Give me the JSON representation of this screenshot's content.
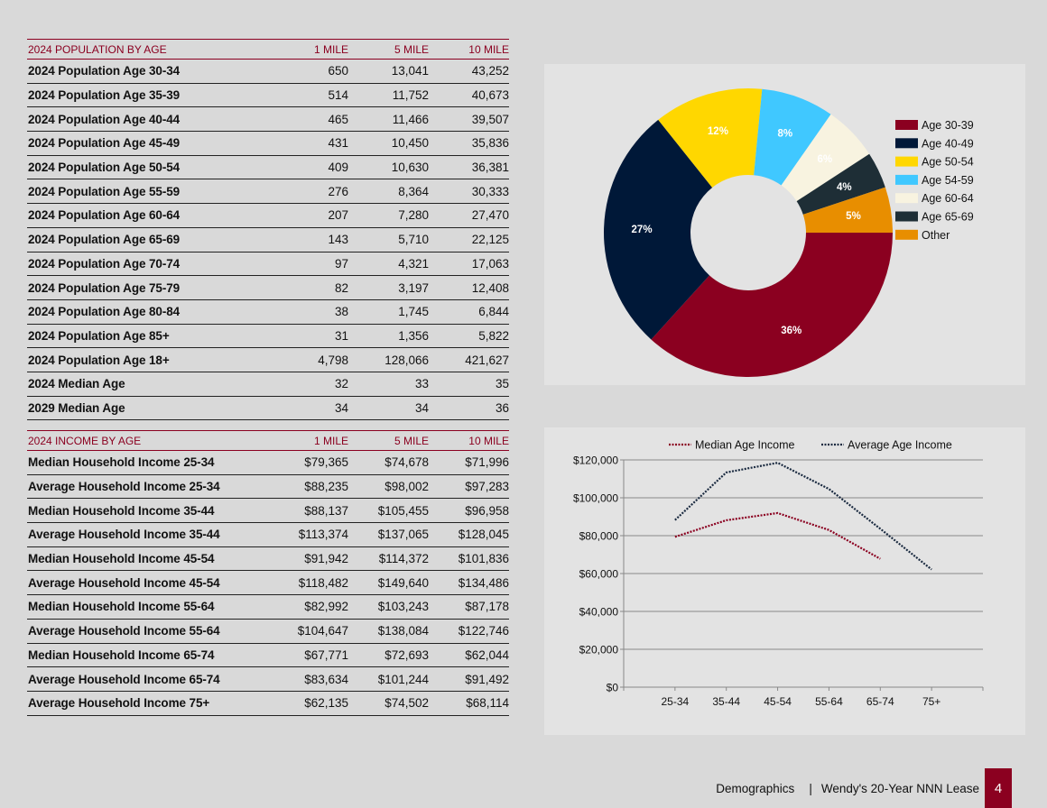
{
  "population_table": {
    "title": "2024 POPULATION BY AGE",
    "columns": [
      "1 MILE",
      "5 MILE",
      "10 MILE"
    ],
    "rows": [
      {
        "label": "2024 Population Age 30-34",
        "values": [
          "650",
          "13,041",
          "43,252"
        ]
      },
      {
        "label": "2024 Population Age 35-39",
        "values": [
          "514",
          "11,752",
          "40,673"
        ]
      },
      {
        "label": "2024 Population Age 40-44",
        "values": [
          "465",
          "11,466",
          "39,507"
        ]
      },
      {
        "label": "2024 Population Age 45-49",
        "values": [
          "431",
          "10,450",
          "35,836"
        ]
      },
      {
        "label": "2024 Population Age 50-54",
        "values": [
          "409",
          "10,630",
          "36,381"
        ]
      },
      {
        "label": "2024 Population Age 55-59",
        "values": [
          "276",
          "8,364",
          "30,333"
        ]
      },
      {
        "label": "2024 Population Age 60-64",
        "values": [
          "207",
          "7,280",
          "27,470"
        ]
      },
      {
        "label": "2024 Population Age 65-69",
        "values": [
          "143",
          "5,710",
          "22,125"
        ]
      },
      {
        "label": "2024 Population Age 70-74",
        "values": [
          "97",
          "4,321",
          "17,063"
        ]
      },
      {
        "label": "2024 Population Age 75-79",
        "values": [
          "82",
          "3,197",
          "12,408"
        ]
      },
      {
        "label": "2024 Population Age 80-84",
        "values": [
          "38",
          "1,745",
          "6,844"
        ]
      },
      {
        "label": "2024 Population Age 85+",
        "values": [
          "31",
          "1,356",
          "5,822"
        ]
      },
      {
        "label": "2024 Population Age 18+",
        "values": [
          "4,798",
          "128,066",
          "421,627"
        ]
      },
      {
        "label": "2024 Median Age",
        "values": [
          "32",
          "33",
          "35"
        ]
      },
      {
        "label": "2029 Median Age",
        "values": [
          "34",
          "34",
          "36"
        ]
      }
    ]
  },
  "income_table": {
    "title": "2024 INCOME BY AGE",
    "columns": [
      "1 MILE",
      "5 MILE",
      "10 MILE"
    ],
    "rows": [
      {
        "label": "Median Household Income 25-34",
        "values": [
          "$79,365",
          "$74,678",
          "$71,996"
        ]
      },
      {
        "label": "Average Household Income 25-34",
        "values": [
          "$88,235",
          "$98,002",
          "$97,283"
        ]
      },
      {
        "label": "Median Household Income 35-44",
        "values": [
          "$88,137",
          "$105,455",
          "$96,958"
        ]
      },
      {
        "label": "Average Household Income 35-44",
        "values": [
          "$113,374",
          "$137,065",
          "$128,045"
        ]
      },
      {
        "label": "Median Household Income 45-54",
        "values": [
          "$91,942",
          "$114,372",
          "$101,836"
        ]
      },
      {
        "label": "Average Household Income 45-54",
        "values": [
          "$118,482",
          "$149,640",
          "$134,486"
        ]
      },
      {
        "label": "Median Household Income 55-64",
        "values": [
          "$82,992",
          "$103,243",
          "$87,178"
        ]
      },
      {
        "label": "Average Household Income 55-64",
        "values": [
          "$104,647",
          "$138,084",
          "$122,746"
        ]
      },
      {
        "label": "Median Household Income 65-74",
        "values": [
          "$67,771",
          "$72,693",
          "$62,044"
        ]
      },
      {
        "label": "Average Household Income 65-74",
        "values": [
          "$83,634",
          "$101,244",
          "$91,492"
        ]
      },
      {
        "label": "Average Household Income 75+",
        "values": [
          "$62,135",
          "$74,502",
          "$68,114"
        ]
      }
    ]
  },
  "chart_data": [
    {
      "type": "pie",
      "variant": "donut",
      "title": "",
      "legend_position": "right",
      "start_angle": "3 o'clock, clockwise",
      "slices": [
        {
          "label": "Age 30-39",
          "value": 36,
          "display": "36%",
          "color": "#8b0020",
          "label_color": "#ffffff"
        },
        {
          "label": "Age 40-49",
          "value": 27,
          "display": "27%",
          "color": "#001838",
          "label_color": "#ffffff"
        },
        {
          "label": "Age 50-54",
          "value": 12,
          "display": "12%",
          "color": "#ffd700",
          "label_color": "#ffffff"
        },
        {
          "label": "Age 54-59",
          "value": 8,
          "display": "8%",
          "color": "#40c8ff",
          "label_color": "#ffffff"
        },
        {
          "label": "Age 60-64",
          "value": 6,
          "display": "6%",
          "color": "#f8f3e0",
          "label_color": "#ffffff"
        },
        {
          "label": "Age 65-69",
          "value": 4,
          "display": "4%",
          "color": "#1e2e36",
          "label_color": "#ffffff"
        },
        {
          "label": "Other",
          "value": 5,
          "display": "5%",
          "color": "#e88e00",
          "label_color": "#ffffff"
        }
      ]
    },
    {
      "type": "line",
      "title": "",
      "xlabel": "",
      "ylabel": "",
      "legend_position": "top",
      "grid": true,
      "categories": [
        "25-34",
        "35-44",
        "45-54",
        "55-64",
        "65-74",
        "75+"
      ],
      "ylim": [
        0,
        120000
      ],
      "yticks": [
        0,
        20000,
        40000,
        60000,
        80000,
        100000,
        120000
      ],
      "ytick_labels": [
        "$0",
        "$20,000",
        "$40,000",
        "$60,000",
        "$80,000",
        "$100,000",
        "$120,000"
      ],
      "series": [
        {
          "name": "Median Age Income",
          "color": "#8b0020",
          "style": "dotted",
          "values": [
            79365,
            88137,
            91942,
            82992,
            67771,
            null
          ]
        },
        {
          "name": "Average Age Income",
          "color": "#1a2a40",
          "style": "dotted",
          "values": [
            88235,
            113374,
            118482,
            104647,
            83634,
            62135
          ]
        }
      ]
    }
  ],
  "footer": {
    "section": "Demographics",
    "separator": "|",
    "title": "Wendy's 20-Year NNN Lease",
    "page_number": "4"
  }
}
